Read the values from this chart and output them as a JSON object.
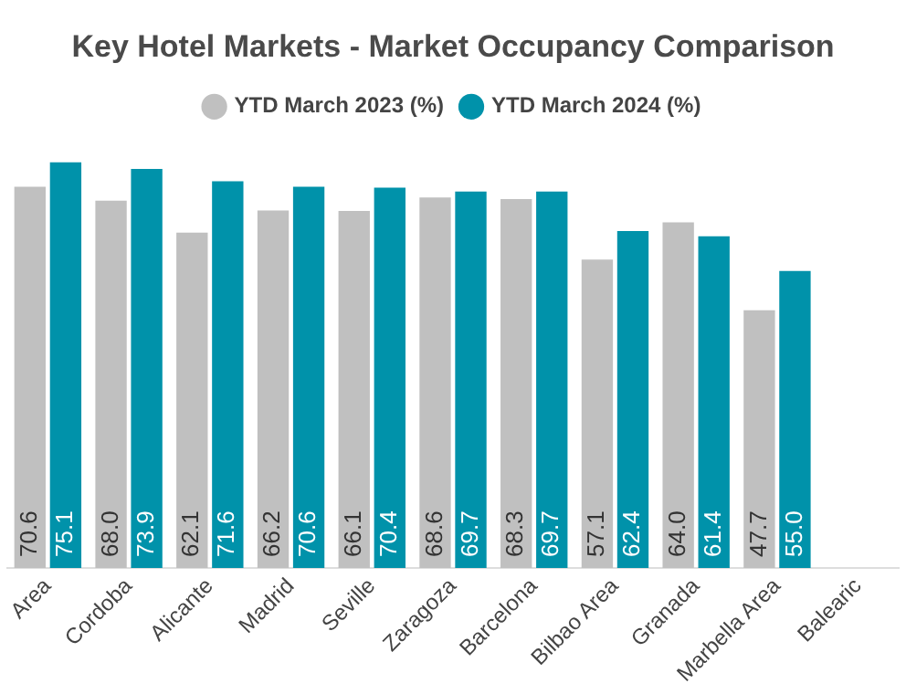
{
  "chart_data": {
    "type": "bar",
    "title": "Key Hotel Markets - Market Occupancy Comparison",
    "categories": [
      "Area",
      "Cordoba",
      "Alicante",
      "Madrid",
      "Seville",
      "Zaragoza",
      "Barcelona",
      "Bilbao Area",
      "Granada",
      "Marbella Area",
      "Balearic"
    ],
    "series": [
      {
        "name": "YTD March 2023 (%)",
        "color": "#c0c0c0",
        "values": [
          70.6,
          68.0,
          62.1,
          66.2,
          66.1,
          68.6,
          68.3,
          57.1,
          64.0,
          47.7,
          null
        ],
        "value_labels": [
          "70.6",
          "68.0",
          "62.1",
          "66.2",
          "66.1",
          "68.6",
          "68.3",
          "57.1",
          "64.0",
          "47.7",
          null
        ]
      },
      {
        "name": "YTD March 2024 (%)",
        "color": "#0092aa",
        "values": [
          75.1,
          73.9,
          71.6,
          70.6,
          70.4,
          69.7,
          69.7,
          62.4,
          61.4,
          55.0,
          null
        ],
        "value_labels": [
          "75.1",
          "73.9",
          "71.6",
          "70.6",
          "70.4",
          "69.7",
          "69.7",
          "62.4",
          "61.4",
          "55.0",
          null
        ]
      }
    ],
    "tick_labels": "x",
    "legend": "top"
  }
}
